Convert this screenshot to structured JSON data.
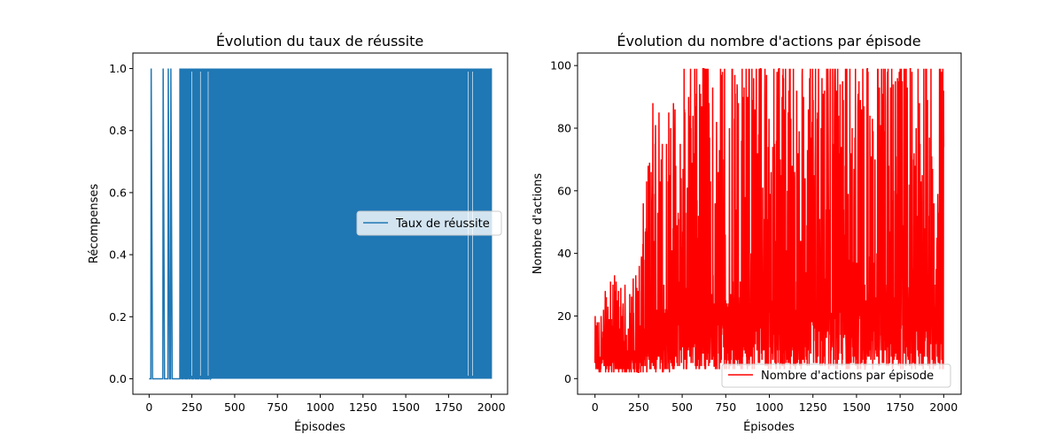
{
  "chart_data": [
    {
      "type": "line",
      "title": "Évolution du taux de réussite",
      "xlabel": "Épisodes",
      "ylabel": "Récompenses",
      "xlim": [
        -95,
        2095
      ],
      "ylim": [
        -0.05,
        1.05
      ],
      "xticks": [
        "0",
        "250",
        "500",
        "750",
        "1000",
        "1250",
        "1500",
        "1750",
        "2000"
      ],
      "xtick_values": [
        0,
        250,
        500,
        750,
        1000,
        1250,
        1500,
        1750,
        2000
      ],
      "yticks": [
        "0.0",
        "0.2",
        "0.4",
        "0.6",
        "0.8",
        "1.0"
      ],
      "ytick_values": [
        0.0,
        0.2,
        0.4,
        0.6,
        0.8,
        1.0
      ],
      "grid": false,
      "legend_position": "center-right",
      "series": [
        {
          "name": "Taux de réussite",
          "color": "#1f77b4",
          "x": [
            0,
            10,
            12,
            20,
            80,
            82,
            90,
            110,
            112,
            120,
            125,
            127,
            135,
            180,
            182,
            190,
            200,
            202,
            210,
            225,
            227,
            235,
            240,
            242,
            250,
            260,
            262,
            270,
            290,
            292,
            300,
            350,
            352,
            360,
            2000
          ],
          "y": [
            0,
            0,
            1,
            0,
            0,
            1,
            0,
            0,
            1,
            0,
            0,
            1,
            0,
            0,
            1,
            0,
            0,
            1,
            0,
            0,
            1,
            0,
            0,
            1,
            0,
            0,
            1,
            0,
            0,
            1,
            0,
            0,
            1,
            0,
            1
          ],
          "dense_alternation_range": [
            180,
            2000
          ],
          "dense_values": [
            0,
            1
          ]
        }
      ]
    },
    {
      "type": "line",
      "title": "Évolution du nombre d'actions par épisode",
      "xlabel": "Épisodes",
      "ylabel": "Nombre d'actions",
      "xlim": [
        -100,
        2100
      ],
      "ylim": [
        -5,
        104
      ],
      "xticks": [
        "0",
        "250",
        "500",
        "750",
        "1000",
        "1250",
        "1500",
        "1750",
        "2000"
      ],
      "xtick_values": [
        0,
        250,
        500,
        750,
        1000,
        1250,
        1500,
        1750,
        2000
      ],
      "yticks": [
        "0",
        "20",
        "40",
        "60",
        "80",
        "100"
      ],
      "ytick_values": [
        0,
        20,
        40,
        60,
        80,
        100
      ],
      "grid": false,
      "legend_position": "bottom-right",
      "series": [
        {
          "name": "Nombre d'actions par épisode",
          "color": "#ff0000",
          "min_value": 2,
          "max_value": 99,
          "envelope_x": [
            0,
            100,
            200,
            250,
            300,
            340,
            400,
            500,
            600,
            700,
            800,
            900,
            1000,
            1100,
            1200,
            1300,
            1400,
            1500,
            1600,
            1700,
            1800,
            1900,
            2000
          ],
          "envelope_max": [
            20,
            34,
            30,
            41,
            69,
            99,
            88,
            99,
            99,
            99,
            99,
            99,
            99,
            99,
            99,
            99,
            99,
            99,
            99,
            99,
            99,
            99,
            99
          ],
          "envelope_min": [
            2,
            2,
            2,
            2,
            2,
            2,
            2,
            3,
            3,
            3,
            3,
            3,
            3,
            3,
            3,
            3,
            3,
            3,
            3,
            3,
            3,
            3,
            3
          ]
        }
      ]
    }
  ]
}
